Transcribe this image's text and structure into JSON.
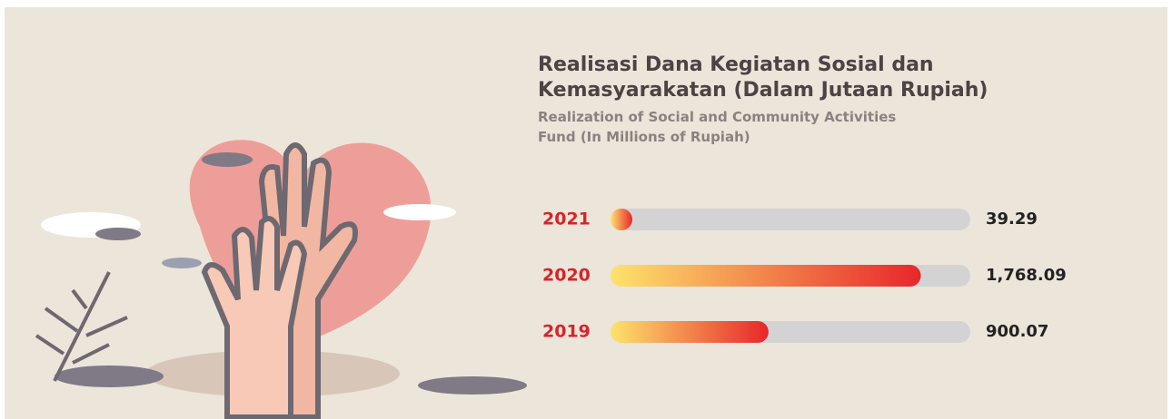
{
  "chart_data": {
    "type": "bar",
    "orientation": "horizontal",
    "title": "Realisasi Dana Kegiatan Sosial dan Kemasyarakatan (Dalam Jutaan Rupiah)",
    "subtitle": "Realization of Social and Community Activities Fund (In Millions of Rupiah)",
    "categories": [
      "2021",
      "2020",
      "2019"
    ],
    "values": [
      39.29,
      1768.09,
      900.07
    ],
    "value_labels": [
      "39.29",
      "1,768.09",
      "900.07"
    ],
    "xlim": [
      0,
      2050
    ],
    "colors": [
      "#fde36c",
      "#e8262a"
    ]
  }
}
